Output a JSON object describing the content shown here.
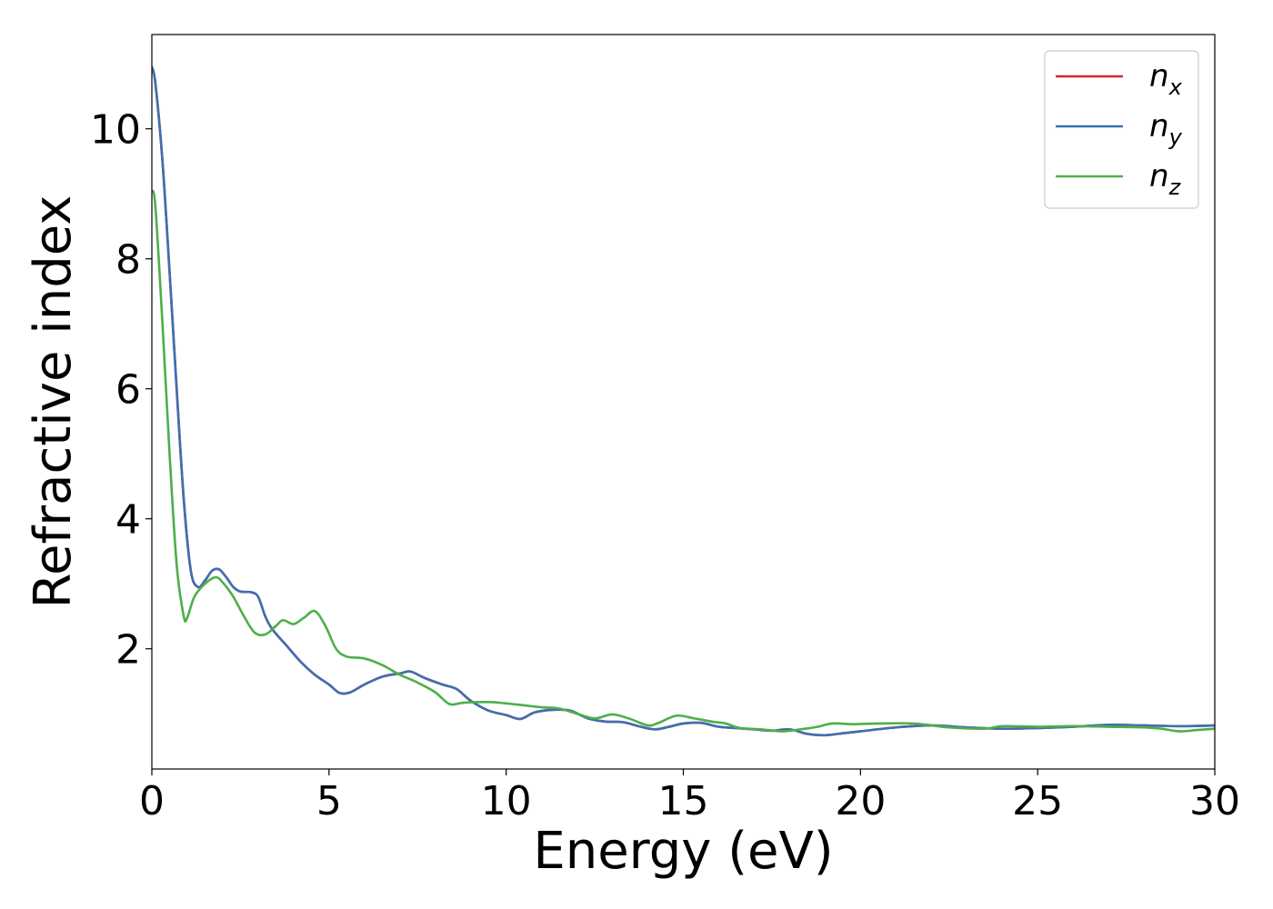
{
  "chart_data": {
    "type": "line",
    "title": "",
    "xlabel": "Energy (eV)",
    "ylabel": "Refractive index",
    "xlim": [
      0,
      30
    ],
    "ylim": [
      0.15,
      11.45
    ],
    "xticks": [
      0,
      5,
      10,
      15,
      20,
      25,
      30
    ],
    "yticks": [
      2,
      4,
      6,
      8,
      10
    ],
    "grid": false,
    "legend_position": "top-right",
    "series": [
      {
        "name": "n_x",
        "legend_base": "n",
        "legend_sub": "x",
        "color": "#d62728",
        "points": [
          [
            0.0,
            10.95
          ],
          [
            0.1,
            10.7
          ],
          [
            0.3,
            9.5
          ],
          [
            0.5,
            7.8
          ],
          [
            0.7,
            6.0
          ],
          [
            0.9,
            4.3
          ],
          [
            1.1,
            3.2
          ],
          [
            1.3,
            2.95
          ],
          [
            1.5,
            3.05
          ],
          [
            1.7,
            3.2
          ],
          [
            1.9,
            3.22
          ],
          [
            2.1,
            3.1
          ],
          [
            2.3,
            2.95
          ],
          [
            2.5,
            2.88
          ],
          [
            2.8,
            2.87
          ],
          [
            3.0,
            2.8
          ],
          [
            3.2,
            2.5
          ],
          [
            3.4,
            2.3
          ],
          [
            3.8,
            2.05
          ],
          [
            4.2,
            1.8
          ],
          [
            4.6,
            1.6
          ],
          [
            5.0,
            1.45
          ],
          [
            5.3,
            1.32
          ],
          [
            5.6,
            1.33
          ],
          [
            6.0,
            1.45
          ],
          [
            6.5,
            1.57
          ],
          [
            7.0,
            1.62
          ],
          [
            7.3,
            1.65
          ],
          [
            7.7,
            1.55
          ],
          [
            8.2,
            1.45
          ],
          [
            8.6,
            1.38
          ],
          [
            9.0,
            1.2
          ],
          [
            9.5,
            1.05
          ],
          [
            10.0,
            0.98
          ],
          [
            10.4,
            0.92
          ],
          [
            10.8,
            1.02
          ],
          [
            11.3,
            1.06
          ],
          [
            11.8,
            1.05
          ],
          [
            12.3,
            0.93
          ],
          [
            12.8,
            0.88
          ],
          [
            13.3,
            0.87
          ],
          [
            13.8,
            0.8
          ],
          [
            14.2,
            0.76
          ],
          [
            14.6,
            0.8
          ],
          [
            15.0,
            0.85
          ],
          [
            15.5,
            0.86
          ],
          [
            16.0,
            0.8
          ],
          [
            16.5,
            0.78
          ],
          [
            17.0,
            0.76
          ],
          [
            17.5,
            0.74
          ],
          [
            18.0,
            0.76
          ],
          [
            18.5,
            0.69
          ],
          [
            19.0,
            0.67
          ],
          [
            19.5,
            0.7
          ],
          [
            20.0,
            0.73
          ],
          [
            21.0,
            0.79
          ],
          [
            22.0,
            0.82
          ],
          [
            23.0,
            0.79
          ],
          [
            24.0,
            0.77
          ],
          [
            25.0,
            0.78
          ],
          [
            26.0,
            0.8
          ],
          [
            27.0,
            0.83
          ],
          [
            28.0,
            0.82
          ],
          [
            29.0,
            0.81
          ],
          [
            30.0,
            0.82
          ]
        ]
      },
      {
        "name": "n_y",
        "legend_base": "n",
        "legend_sub": "y",
        "color": "#3e6fb0",
        "points": [
          [
            0.0,
            10.95
          ],
          [
            0.1,
            10.7
          ],
          [
            0.3,
            9.5
          ],
          [
            0.5,
            7.8
          ],
          [
            0.7,
            6.0
          ],
          [
            0.9,
            4.3
          ],
          [
            1.1,
            3.2
          ],
          [
            1.3,
            2.95
          ],
          [
            1.5,
            3.05
          ],
          [
            1.7,
            3.2
          ],
          [
            1.9,
            3.22
          ],
          [
            2.1,
            3.1
          ],
          [
            2.3,
            2.95
          ],
          [
            2.5,
            2.88
          ],
          [
            2.8,
            2.87
          ],
          [
            3.0,
            2.8
          ],
          [
            3.2,
            2.5
          ],
          [
            3.4,
            2.3
          ],
          [
            3.8,
            2.05
          ],
          [
            4.2,
            1.8
          ],
          [
            4.6,
            1.6
          ],
          [
            5.0,
            1.45
          ],
          [
            5.3,
            1.32
          ],
          [
            5.6,
            1.33
          ],
          [
            6.0,
            1.45
          ],
          [
            6.5,
            1.57
          ],
          [
            7.0,
            1.62
          ],
          [
            7.3,
            1.65
          ],
          [
            7.7,
            1.55
          ],
          [
            8.2,
            1.45
          ],
          [
            8.6,
            1.38
          ],
          [
            9.0,
            1.2
          ],
          [
            9.5,
            1.05
          ],
          [
            10.0,
            0.98
          ],
          [
            10.4,
            0.92
          ],
          [
            10.8,
            1.02
          ],
          [
            11.3,
            1.06
          ],
          [
            11.8,
            1.05
          ],
          [
            12.3,
            0.93
          ],
          [
            12.8,
            0.88
          ],
          [
            13.3,
            0.87
          ],
          [
            13.8,
            0.8
          ],
          [
            14.2,
            0.76
          ],
          [
            14.6,
            0.8
          ],
          [
            15.0,
            0.85
          ],
          [
            15.5,
            0.86
          ],
          [
            16.0,
            0.8
          ],
          [
            16.5,
            0.78
          ],
          [
            17.0,
            0.76
          ],
          [
            17.5,
            0.74
          ],
          [
            18.0,
            0.76
          ],
          [
            18.5,
            0.69
          ],
          [
            19.0,
            0.67
          ],
          [
            19.5,
            0.7
          ],
          [
            20.0,
            0.73
          ],
          [
            21.0,
            0.79
          ],
          [
            22.0,
            0.82
          ],
          [
            23.0,
            0.79
          ],
          [
            24.0,
            0.77
          ],
          [
            25.0,
            0.78
          ],
          [
            26.0,
            0.8
          ],
          [
            27.0,
            0.83
          ],
          [
            28.0,
            0.82
          ],
          [
            29.0,
            0.81
          ],
          [
            30.0,
            0.82
          ]
        ]
      },
      {
        "name": "n_z",
        "legend_base": "n",
        "legend_sub": "z",
        "color": "#4daf4a",
        "points": [
          [
            0.0,
            9.05
          ],
          [
            0.1,
            8.8
          ],
          [
            0.3,
            7.0
          ],
          [
            0.5,
            5.0
          ],
          [
            0.7,
            3.3
          ],
          [
            0.9,
            2.5
          ],
          [
            1.0,
            2.48
          ],
          [
            1.2,
            2.8
          ],
          [
            1.5,
            3.0
          ],
          [
            1.8,
            3.1
          ],
          [
            2.0,
            3.02
          ],
          [
            2.3,
            2.8
          ],
          [
            2.6,
            2.5
          ],
          [
            2.9,
            2.25
          ],
          [
            3.2,
            2.22
          ],
          [
            3.5,
            2.35
          ],
          [
            3.7,
            2.44
          ],
          [
            4.0,
            2.38
          ],
          [
            4.3,
            2.48
          ],
          [
            4.6,
            2.58
          ],
          [
            4.9,
            2.35
          ],
          [
            5.2,
            2.0
          ],
          [
            5.5,
            1.88
          ],
          [
            6.0,
            1.85
          ],
          [
            6.5,
            1.75
          ],
          [
            7.0,
            1.6
          ],
          [
            7.5,
            1.48
          ],
          [
            8.0,
            1.33
          ],
          [
            8.4,
            1.15
          ],
          [
            8.8,
            1.17
          ],
          [
            9.5,
            1.18
          ],
          [
            10.0,
            1.16
          ],
          [
            10.5,
            1.13
          ],
          [
            11.0,
            1.1
          ],
          [
            11.5,
            1.08
          ],
          [
            12.0,
            1.0
          ],
          [
            12.5,
            0.93
          ],
          [
            13.0,
            0.99
          ],
          [
            13.5,
            0.92
          ],
          [
            14.0,
            0.82
          ],
          [
            14.3,
            0.86
          ],
          [
            14.8,
            0.97
          ],
          [
            15.3,
            0.93
          ],
          [
            15.8,
            0.88
          ],
          [
            16.2,
            0.85
          ],
          [
            16.6,
            0.78
          ],
          [
            17.2,
            0.76
          ],
          [
            17.8,
            0.73
          ],
          [
            18.3,
            0.76
          ],
          [
            18.8,
            0.8
          ],
          [
            19.2,
            0.85
          ],
          [
            19.8,
            0.84
          ],
          [
            20.5,
            0.85
          ],
          [
            21.5,
            0.85
          ],
          [
            22.5,
            0.79
          ],
          [
            23.5,
            0.77
          ],
          [
            24.0,
            0.81
          ],
          [
            25.0,
            0.8
          ],
          [
            26.0,
            0.81
          ],
          [
            27.0,
            0.8
          ],
          [
            28.0,
            0.79
          ],
          [
            28.5,
            0.77
          ],
          [
            29.0,
            0.73
          ],
          [
            29.5,
            0.75
          ],
          [
            30.0,
            0.77
          ]
        ]
      }
    ]
  }
}
